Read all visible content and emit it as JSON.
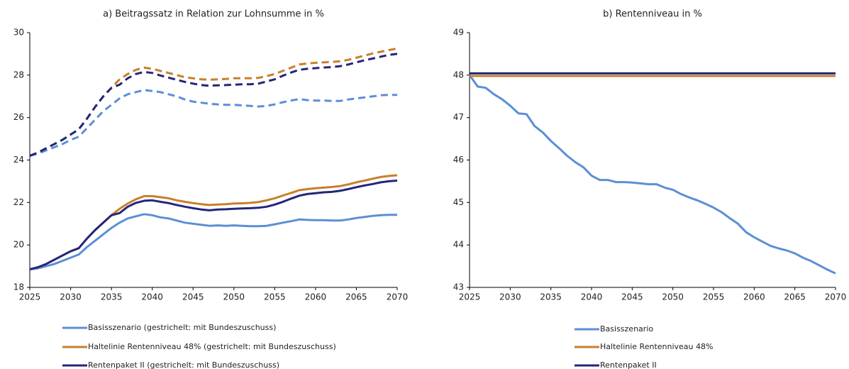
{
  "chart_data": [
    {
      "type": "line",
      "title": "a) Beitragssatz in Relation zur Lohnsumme in %",
      "x": [
        2025,
        2026,
        2027,
        2028,
        2029,
        2030,
        2031,
        2032,
        2033,
        2034,
        2035,
        2036,
        2037,
        2038,
        2039,
        2040,
        2041,
        2042,
        2043,
        2044,
        2045,
        2046,
        2047,
        2048,
        2049,
        2050,
        2051,
        2052,
        2053,
        2054,
        2055,
        2056,
        2057,
        2058,
        2059,
        2060,
        2061,
        2062,
        2063,
        2064,
        2065,
        2066,
        2067,
        2068,
        2069,
        2070
      ],
      "xlim": [
        2025,
        2070
      ],
      "xticks": [
        2025,
        2030,
        2035,
        2040,
        2045,
        2050,
        2055,
        2060,
        2065,
        2070
      ],
      "ylim": [
        18,
        30
      ],
      "yticks": [
        18,
        20,
        22,
        24,
        26,
        28,
        30
      ],
      "grid": false,
      "series": [
        {
          "name": "Basisszenario (gestrichelt: mit Bundeszuschuss)",
          "color": "#5b8fd6",
          "values": [
            18.85,
            18.9,
            19.0,
            19.1,
            19.25,
            19.4,
            19.55,
            19.9,
            20.2,
            20.5,
            20.8,
            21.05,
            21.25,
            21.35,
            21.45,
            21.4,
            21.3,
            21.25,
            21.15,
            21.05,
            21.0,
            20.95,
            20.9,
            20.92,
            20.9,
            20.92,
            20.9,
            20.88,
            20.88,
            20.9,
            20.97,
            21.05,
            21.12,
            21.2,
            21.18,
            21.17,
            21.17,
            21.15,
            21.15,
            21.2,
            21.27,
            21.32,
            21.37,
            21.4,
            21.42,
            21.42
          ],
          "dashed_values": [
            24.2,
            24.3,
            24.45,
            24.6,
            24.75,
            24.95,
            25.1,
            25.5,
            25.9,
            26.3,
            26.6,
            26.9,
            27.1,
            27.2,
            27.3,
            27.25,
            27.2,
            27.1,
            27.0,
            26.85,
            26.75,
            26.7,
            26.65,
            26.62,
            26.6,
            26.6,
            26.57,
            26.55,
            26.52,
            26.55,
            26.62,
            26.72,
            26.8,
            26.87,
            26.82,
            26.8,
            26.8,
            26.78,
            26.78,
            26.85,
            26.9,
            26.95,
            27.0,
            27.05,
            27.07,
            27.07
          ]
        },
        {
          "name": "Haltelinie Rentenniveau 48%  (gestrichelt: mit Bundeszuschuss)",
          "color": "#c87f2a",
          "values": [
            18.85,
            18.95,
            19.1,
            19.3,
            19.5,
            19.7,
            19.85,
            20.3,
            20.7,
            21.05,
            21.4,
            21.7,
            21.95,
            22.15,
            22.3,
            22.3,
            22.25,
            22.2,
            22.1,
            22.03,
            21.97,
            21.92,
            21.88,
            21.9,
            21.92,
            21.95,
            21.96,
            21.98,
            22.02,
            22.1,
            22.2,
            22.33,
            22.45,
            22.58,
            22.63,
            22.67,
            22.7,
            22.73,
            22.77,
            22.85,
            22.95,
            23.03,
            23.12,
            23.2,
            23.25,
            23.28
          ],
          "dashed_values": [
            24.2,
            24.35,
            24.55,
            24.75,
            24.95,
            25.2,
            25.45,
            25.95,
            26.5,
            27.0,
            27.4,
            27.8,
            28.05,
            28.25,
            28.35,
            28.3,
            28.2,
            28.1,
            28.0,
            27.9,
            27.85,
            27.8,
            27.78,
            27.8,
            27.82,
            27.85,
            27.85,
            27.85,
            27.87,
            27.95,
            28.05,
            28.2,
            28.35,
            28.5,
            28.55,
            28.58,
            28.6,
            28.62,
            28.65,
            28.72,
            28.82,
            28.92,
            29.02,
            29.1,
            29.18,
            29.25
          ]
        },
        {
          "name": "Rentenpaket II (gestrichelt: mit Bundeszuschuss)",
          "color": "#23267a",
          "values": [
            18.85,
            18.95,
            19.1,
            19.3,
            19.5,
            19.7,
            19.85,
            20.3,
            20.7,
            21.05,
            21.4,
            21.5,
            21.8,
            21.98,
            22.08,
            22.1,
            22.03,
            21.97,
            21.88,
            21.8,
            21.73,
            21.67,
            21.63,
            21.67,
            21.68,
            21.7,
            21.72,
            21.73,
            21.75,
            21.8,
            21.9,
            22.03,
            22.18,
            22.32,
            22.4,
            22.44,
            22.48,
            22.5,
            22.55,
            22.63,
            22.72,
            22.8,
            22.87,
            22.95,
            23.0,
            23.03
          ],
          "dashed_values": [
            24.2,
            24.35,
            24.55,
            24.75,
            24.95,
            25.2,
            25.45,
            25.95,
            26.5,
            27.0,
            27.4,
            27.55,
            27.85,
            28.05,
            28.15,
            28.1,
            27.98,
            27.88,
            27.78,
            27.68,
            27.6,
            27.53,
            27.5,
            27.52,
            27.53,
            27.55,
            27.57,
            27.57,
            27.6,
            27.7,
            27.8,
            27.97,
            28.12,
            28.25,
            28.3,
            28.33,
            28.36,
            28.38,
            28.42,
            28.5,
            28.6,
            28.7,
            28.78,
            28.87,
            28.95,
            29.0
          ]
        }
      ]
    },
    {
      "type": "line",
      "title": "b) Rentenniveau in %",
      "x": [
        2025,
        2026,
        2027,
        2028,
        2029,
        2030,
        2031,
        2032,
        2033,
        2034,
        2035,
        2036,
        2037,
        2038,
        2039,
        2040,
        2041,
        2042,
        2043,
        2044,
        2045,
        2046,
        2047,
        2048,
        2049,
        2050,
        2051,
        2052,
        2053,
        2054,
        2055,
        2056,
        2057,
        2058,
        2059,
        2060,
        2061,
        2062,
        2063,
        2064,
        2065,
        2066,
        2067,
        2068,
        2069,
        2070
      ],
      "xlim": [
        2025,
        2070
      ],
      "xticks": [
        2025,
        2030,
        2035,
        2040,
        2045,
        2050,
        2055,
        2060,
        2065,
        2070
      ],
      "ylim": [
        43,
        49
      ],
      "yticks": [
        43,
        44,
        45,
        46,
        47,
        48,
        49
      ],
      "grid": false,
      "series": [
        {
          "name": "Basisszenario",
          "color": "#5b8fd6",
          "values": [
            48.0,
            47.73,
            47.7,
            47.55,
            47.43,
            47.28,
            47.1,
            47.08,
            46.8,
            46.65,
            46.45,
            46.28,
            46.1,
            45.95,
            45.83,
            45.63,
            45.53,
            45.53,
            45.48,
            45.48,
            45.47,
            45.45,
            45.43,
            45.43,
            45.35,
            45.3,
            45.2,
            45.12,
            45.05,
            44.97,
            44.88,
            44.77,
            44.63,
            44.5,
            44.3,
            44.18,
            44.08,
            43.98,
            43.92,
            43.87,
            43.8,
            43.7,
            43.62,
            43.52,
            43.42,
            43.33
          ]
        },
        {
          "name": "Haltelinie Rentenniveau 48%",
          "color": "#c87f2a",
          "values": [
            47.98,
            47.98,
            47.98,
            47.98,
            47.98,
            47.98,
            47.98,
            47.98,
            47.98,
            47.98,
            47.98,
            47.98,
            47.98,
            47.98,
            47.98,
            47.98,
            47.98,
            47.98,
            47.98,
            47.98,
            47.98,
            47.98,
            47.98,
            47.98,
            47.98,
            47.98,
            47.98,
            47.98,
            47.98,
            47.98,
            47.98,
            47.98,
            47.98,
            47.98,
            47.98,
            47.98,
            47.98,
            47.98,
            47.98,
            47.98,
            47.98,
            47.98,
            47.98,
            47.98,
            47.98,
            47.98
          ]
        },
        {
          "name": "Rentenpaket II",
          "color": "#23267a",
          "values": [
            48.04,
            48.04,
            48.04,
            48.04,
            48.04,
            48.04,
            48.04,
            48.04,
            48.04,
            48.04,
            48.04,
            48.04,
            48.04,
            48.04,
            48.04,
            48.04,
            48.04,
            48.04,
            48.04,
            48.04,
            48.04,
            48.04,
            48.04,
            48.04,
            48.04,
            48.04,
            48.04,
            48.04,
            48.04,
            48.04,
            48.04,
            48.04,
            48.04,
            48.04,
            48.04,
            48.04,
            48.04,
            48.04,
            48.04,
            48.04,
            48.04,
            48.04,
            48.04,
            48.04,
            48.04,
            48.04
          ]
        }
      ]
    }
  ]
}
